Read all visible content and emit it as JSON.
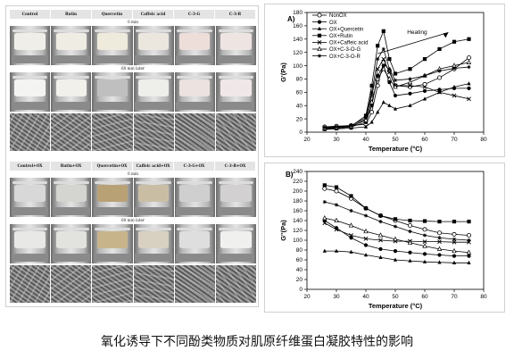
{
  "photo_panel": {
    "group1": {
      "headers": [
        "Control",
        "Rutin",
        "Quercetin",
        "Caffeic acid",
        "C-3-G",
        "C-3-R"
      ],
      "time_top": "0 min",
      "time_mid": "60 min later",
      "gel_colors": [
        "#efeee8",
        "#efece4",
        "#eeeadc",
        "#ebe7df",
        "#eeded9",
        "#eee4e2"
      ],
      "gel_colors_60": [
        "#f4f4f2",
        "#f2f0ea",
        "#bfbfbf",
        "#eeeeea",
        "#ece2e0",
        "#f0e8e8"
      ]
    },
    "group2": {
      "headers": [
        "Control+OX",
        "Rutin+OX",
        "Quercetin+OX",
        "Caffeic acid+OX",
        "C-3-G+OX",
        "C-3-R+OX"
      ],
      "time_top": "0 min",
      "time_mid": "60 min later",
      "gel_colors": [
        "#d8d8d8",
        "#d4d4d0",
        "#b9a176",
        "#c9bea4",
        "#cfcfcf",
        "#d2d0d0"
      ],
      "gel_colors_60": [
        "#e8e8e6",
        "#e2e2de",
        "#c8b48a",
        "#d8d0c0",
        "#dedede",
        "#f0f0ee"
      ]
    }
  },
  "chart_data": [
    {
      "type": "line",
      "panel_label": "A)",
      "ylabel": "G'(Pa)",
      "xlabel": "Temperature (°C)",
      "xlim": [
        20,
        80
      ],
      "ylim": [
        0,
        180
      ],
      "xticks": [
        20,
        30,
        40,
        50,
        60,
        70,
        80
      ],
      "yticks": [
        0,
        20,
        40,
        60,
        80,
        100,
        120,
        140,
        160,
        180
      ],
      "annotation": "Heating",
      "legend_position": "top-left",
      "series": [
        {
          "name": "NonOX",
          "marker": "circle-open",
          "x": [
            26,
            30,
            35,
            40,
            42,
            44,
            46,
            48,
            50,
            55,
            60,
            65,
            70,
            75
          ],
          "y": [
            8,
            9,
            10,
            12,
            30,
            70,
            105,
            92,
            70,
            68,
            72,
            82,
            95,
            112
          ]
        },
        {
          "name": "OX",
          "marker": "circle-filled",
          "x": [
            26,
            30,
            35,
            40,
            42,
            44,
            46,
            48,
            50,
            55,
            60,
            65,
            70,
            75
          ],
          "y": [
            5,
            6,
            8,
            15,
            40,
            85,
            100,
            75,
            55,
            58,
            62,
            64,
            66,
            66
          ]
        },
        {
          "name": "OX+Quercetin",
          "marker": "triangle-filled",
          "x": [
            26,
            30,
            35,
            40,
            42,
            44,
            46,
            48,
            50,
            55,
            60,
            65,
            70,
            75
          ],
          "y": [
            4,
            5,
            6,
            8,
            15,
            30,
            45,
            40,
            35,
            40,
            50,
            60,
            68,
            73
          ]
        },
        {
          "name": "OX+Rutin",
          "marker": "square-filled",
          "x": [
            26,
            30,
            35,
            40,
            42,
            44,
            46,
            48,
            50,
            55,
            60,
            65,
            70,
            75
          ],
          "y": [
            6,
            7,
            9,
            25,
            70,
            130,
            152,
            110,
            88,
            95,
            110,
            125,
            136,
            140
          ]
        },
        {
          "name": "OX+Caffeic acid",
          "marker": "cross",
          "x": [
            26,
            30,
            35,
            40,
            42,
            44,
            46,
            48,
            50,
            55,
            60,
            65,
            70,
            75
          ],
          "y": [
            5,
            6,
            8,
            20,
            55,
            95,
            110,
            90,
            70,
            70,
            68,
            60,
            55,
            50
          ]
        },
        {
          "name": "OX+C-3-O-G",
          "marker": "triangle-open",
          "x": [
            26,
            30,
            35,
            40,
            42,
            44,
            46,
            48,
            50,
            55,
            60,
            65,
            70,
            75
          ],
          "y": [
            6,
            7,
            9,
            18,
            45,
            80,
            95,
            80,
            68,
            75,
            85,
            95,
            100,
            105
          ]
        },
        {
          "name": "OX+C-3-O-R",
          "marker": "star",
          "x": [
            26,
            30,
            35,
            40,
            42,
            44,
            46,
            48,
            50,
            55,
            60,
            65,
            70,
            75
          ],
          "y": [
            7,
            8,
            10,
            22,
            60,
            110,
            125,
            95,
            78,
            80,
            85,
            92,
            96,
            98
          ]
        }
      ]
    },
    {
      "type": "line",
      "panel_label": "B)",
      "ylabel": "G''(Pa)",
      "xlabel": "Temperature (°C)",
      "xlim": [
        20,
        80
      ],
      "ylim": [
        0,
        240
      ],
      "xticks": [
        20,
        30,
        40,
        50,
        60,
        70,
        80
      ],
      "yticks": [
        0,
        20,
        40,
        60,
        80,
        100,
        120,
        140,
        160,
        180,
        200,
        220,
        240
      ],
      "series": [
        {
          "name": "NonOX",
          "marker": "circle-open",
          "x": [
            26,
            30,
            35,
            40,
            45,
            50,
            55,
            60,
            65,
            70,
            75
          ],
          "y": [
            205,
            200,
            185,
            165,
            150,
            140,
            130,
            122,
            115,
            112,
            110
          ]
        },
        {
          "name": "OX",
          "marker": "circle-filled",
          "x": [
            26,
            30,
            35,
            40,
            45,
            50,
            55,
            60,
            65,
            70,
            75
          ],
          "y": [
            140,
            125,
            105,
            90,
            82,
            78,
            75,
            72,
            70,
            68,
            68
          ]
        },
        {
          "name": "OX+Quercetin",
          "marker": "triangle-filled",
          "x": [
            26,
            30,
            35,
            40,
            45,
            50,
            55,
            60,
            65,
            70,
            75
          ],
          "y": [
            78,
            78,
            76,
            70,
            65,
            60,
            58,
            56,
            55,
            54,
            54
          ]
        },
        {
          "name": "OX+Rutin",
          "marker": "square-filled",
          "x": [
            26,
            30,
            35,
            40,
            45,
            50,
            55,
            60,
            65,
            70,
            75
          ],
          "y": [
            212,
            208,
            190,
            165,
            150,
            143,
            140,
            139,
            138,
            138,
            138
          ]
        },
        {
          "name": "OX+Caffeic acid",
          "marker": "cross",
          "x": [
            26,
            30,
            35,
            40,
            45,
            50,
            55,
            60,
            65,
            70,
            75
          ],
          "y": [
            135,
            122,
            110,
            103,
            100,
            98,
            98,
            97,
            97,
            96,
            96
          ]
        },
        {
          "name": "OX+C-3-O-G",
          "marker": "triangle-open",
          "x": [
            26,
            30,
            35,
            40,
            45,
            50,
            55,
            60,
            65,
            70,
            75
          ],
          "y": [
            145,
            140,
            130,
            118,
            110,
            102,
            95,
            88,
            82,
            78,
            75
          ]
        },
        {
          "name": "OX+C-3-O-R",
          "marker": "star",
          "x": [
            26,
            30,
            35,
            40,
            45,
            50,
            55,
            60,
            65,
            70,
            75
          ],
          "y": [
            178,
            172,
            160,
            150,
            138,
            128,
            118,
            110,
            105,
            102,
            100
          ]
        }
      ]
    }
  ],
  "caption": "氧化诱导下不同酚类物质对肌原纤维蛋白凝胶特性的影响"
}
